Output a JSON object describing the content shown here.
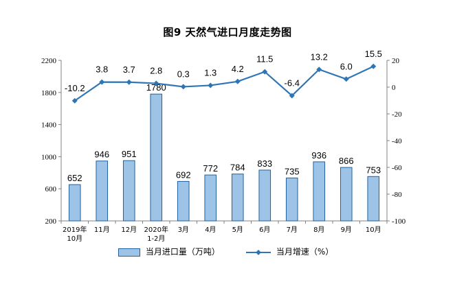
{
  "chart_data": {
    "title": "图9  天然气进口月度走势图",
    "type": "bar+line",
    "categories": [
      "2019年\n10月",
      "11月",
      "12月",
      "2020年\n1-2月",
      "3月",
      "4月",
      "5月",
      "6月",
      "7月",
      "8月",
      "9月",
      "10月"
    ],
    "series": [
      {
        "name": "当月进口量（万吨）",
        "type": "bar",
        "axis": "left",
        "values": [
          652,
          946,
          951,
          1780,
          692,
          772,
          784,
          833,
          735,
          936,
          866,
          753
        ],
        "color": "#9DC3E6",
        "edge": "#1F5F9F"
      },
      {
        "name": "当月增速（%）",
        "type": "line",
        "axis": "right",
        "values": [
          -10.2,
          3.8,
          3.7,
          2.8,
          0.3,
          1.3,
          4.2,
          11.5,
          -6.4,
          13.2,
          6.0,
          15.5
        ],
        "labels": [
          "-10.2",
          "3.8",
          "3.7",
          "2.8",
          "0.3",
          "1.3",
          "4.2",
          "11.5",
          "-6.4",
          "13.2",
          "6.0",
          "15.5"
        ],
        "color": "#2E75B6"
      }
    ],
    "y_left": {
      "min": 200,
      "max": 2200,
      "ticks": [
        200,
        600,
        1000,
        1400,
        1800,
        2200
      ]
    },
    "y_right": {
      "min": -100,
      "max": 20,
      "ticks": [
        -100,
        -80,
        -60,
        -40,
        -20,
        0,
        20
      ]
    },
    "legend_position": "bottom"
  }
}
